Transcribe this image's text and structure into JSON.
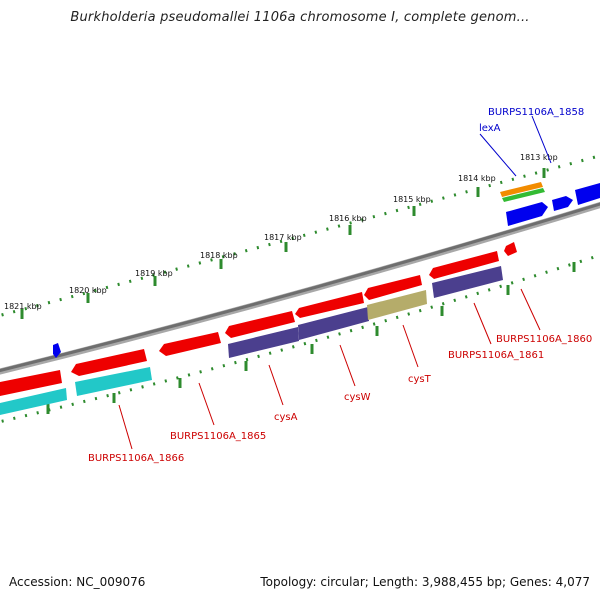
{
  "title": "Burkholderia pseudomallei 1106a chromosome I, complete genom...",
  "footer": {
    "accession": "Accession: NC_009076",
    "summary": "Topology: circular; Length: 3,988,455 bp; Genes: 4,077"
  },
  "colors": {
    "backbone": "#808080",
    "tick": "#2e8b2e",
    "red_gene": "#ee0000",
    "cyan_gene": "#22c8c8",
    "purple_gene": "#4b3f8e",
    "khaki_gene": "#b5ac6a",
    "blue_gene": "#0000ee",
    "orange_gene": "#f28c00",
    "green_gene": "#33bb33",
    "label_red": "#cc0000",
    "label_blue": "#0000cc"
  },
  "scale_labels": [
    "1821 kbp",
    "1820 kbp",
    "1819 kbp",
    "1818 kbp",
    "1817 kbp",
    "1816 kbp",
    "1815 kbp",
    "1814 kbp",
    "1813 kbp"
  ],
  "gene_labels": {
    "burps_1858": "BURPS1106A_1858",
    "lexA": "lexA",
    "burps_1860": "BURPS1106A_1860",
    "burps_1861": "BURPS1106A_1861",
    "cysT": "cysT",
    "cysW": "cysW",
    "cysA": "cysA",
    "burps_1865": "BURPS1106A_1865",
    "burps_1866": "BURPS1106A_1866"
  }
}
